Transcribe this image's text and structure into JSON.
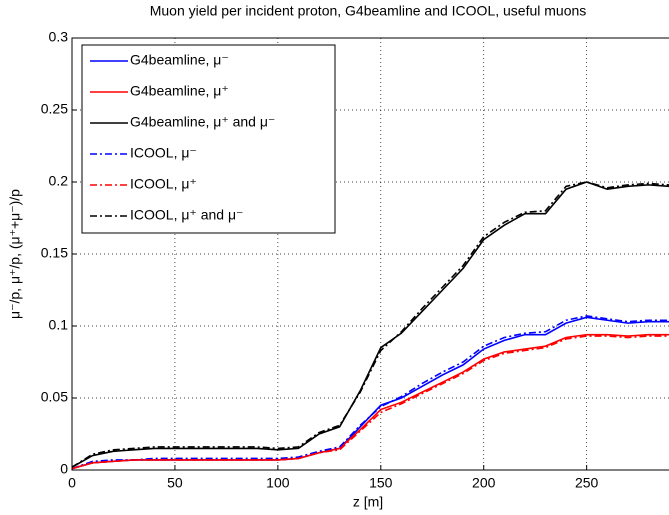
{
  "chart_data": {
    "type": "line",
    "title": "Muon yield per incident proton, G4beamline and ICOOL, useful muons",
    "xlabel": "z [m]",
    "ylabel": "μ⁻/p, μ⁺/p, (μ⁺+μ⁻)/p",
    "x": [
      0,
      10,
      20,
      30,
      40,
      50,
      60,
      70,
      80,
      90,
      100,
      110,
      115,
      120,
      130,
      140,
      150,
      160,
      170,
      180,
      190,
      200,
      210,
      220,
      230,
      240,
      250,
      260,
      270,
      280,
      290
    ],
    "series": [
      {
        "name": "G4beamline, μ⁻",
        "color": "#0000ff",
        "line_style": "solid",
        "values": [
          0.001,
          0.005,
          0.006,
          0.007,
          0.007,
          0.007,
          0.007,
          0.007,
          0.007,
          0.007,
          0.007,
          0.008,
          0.01,
          0.012,
          0.015,
          0.03,
          0.045,
          0.05,
          0.058,
          0.066,
          0.073,
          0.084,
          0.09,
          0.094,
          0.094,
          0.102,
          0.106,
          0.104,
          0.102,
          0.103,
          0.103
        ]
      },
      {
        "name": "G4beamline, μ⁺",
        "color": "#ff0000",
        "line_style": "solid",
        "values": [
          0.001,
          0.005,
          0.006,
          0.007,
          0.007,
          0.007,
          0.007,
          0.007,
          0.007,
          0.007,
          0.007,
          0.008,
          0.01,
          0.012,
          0.015,
          0.028,
          0.042,
          0.047,
          0.054,
          0.061,
          0.068,
          0.077,
          0.082,
          0.084,
          0.086,
          0.092,
          0.094,
          0.094,
          0.093,
          0.094,
          0.094
        ]
      },
      {
        "name": "G4beamline, μ⁺ and μ⁻",
        "color": "#000000",
        "line_style": "solid",
        "values": [
          0.002,
          0.01,
          0.013,
          0.014,
          0.015,
          0.015,
          0.015,
          0.015,
          0.015,
          0.015,
          0.014,
          0.015,
          0.02,
          0.025,
          0.03,
          0.055,
          0.085,
          0.095,
          0.11,
          0.125,
          0.14,
          0.16,
          0.17,
          0.178,
          0.178,
          0.195,
          0.2,
          0.195,
          0.197,
          0.198,
          0.197
        ]
      },
      {
        "name": "ICOOL, μ⁻",
        "color": "#0000ff",
        "line_style": "dashdot",
        "values": [
          0.001,
          0.006,
          0.007,
          0.007,
          0.008,
          0.008,
          0.008,
          0.008,
          0.008,
          0.008,
          0.008,
          0.009,
          0.011,
          0.013,
          0.016,
          0.031,
          0.044,
          0.051,
          0.06,
          0.068,
          0.075,
          0.086,
          0.092,
          0.095,
          0.096,
          0.104,
          0.107,
          0.105,
          0.103,
          0.104,
          0.104
        ]
      },
      {
        "name": "ICOOL, μ⁺",
        "color": "#ff0000",
        "line_style": "dashdot",
        "values": [
          0.001,
          0.005,
          0.006,
          0.007,
          0.007,
          0.007,
          0.007,
          0.007,
          0.007,
          0.007,
          0.007,
          0.008,
          0.01,
          0.012,
          0.014,
          0.027,
          0.04,
          0.046,
          0.053,
          0.06,
          0.067,
          0.076,
          0.081,
          0.083,
          0.085,
          0.091,
          0.093,
          0.093,
          0.092,
          0.093,
          0.093
        ]
      },
      {
        "name": "ICOOL, μ⁺ and μ⁻",
        "color": "#000000",
        "line_style": "dashdot",
        "values": [
          0.002,
          0.011,
          0.014,
          0.015,
          0.016,
          0.016,
          0.016,
          0.016,
          0.016,
          0.016,
          0.015,
          0.016,
          0.021,
          0.026,
          0.031,
          0.054,
          0.083,
          0.096,
          0.112,
          0.127,
          0.142,
          0.162,
          0.172,
          0.179,
          0.18,
          0.197,
          0.2,
          0.196,
          0.198,
          0.199,
          0.198
        ]
      }
    ],
    "xlim": [
      0,
      290
    ],
    "xticks": [
      0,
      50,
      100,
      150,
      200,
      250
    ],
    "ylim": [
      0,
      0.3
    ],
    "yticks": [
      0,
      0.05,
      0.1,
      0.15,
      0.2,
      0.25,
      0.3
    ],
    "grid": true,
    "legend": "upper left"
  }
}
